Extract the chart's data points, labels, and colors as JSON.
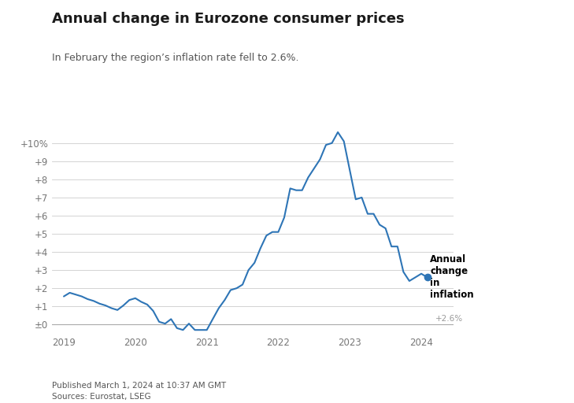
{
  "title": "Annual change in Eurozone consumer prices",
  "subtitle": "In February the region’s inflation rate fell to 2.6%.",
  "footer_line1": "Published March 1, 2024 at 10:37 AM GMT",
  "footer_line2": "Sources: Eurostat, LSEG",
  "line_color": "#2E75B6",
  "background_color": "#ffffff",
  "label_text": "Annual\nchange\nin\ninflation",
  "annotation_text": "+2.6%",
  "ytick_labels": [
    "±0",
    "+1",
    "+2",
    "+3",
    "+4",
    "+5",
    "+6",
    "+7",
    "+8",
    "+9",
    "+10%"
  ],
  "ylim": [
    -0.55,
    11.0
  ],
  "xlim": [
    2018.83,
    2024.45
  ],
  "xticks": [
    2019,
    2020,
    2021,
    2022,
    2023,
    2024
  ],
  "data": {
    "dates_numeric": [
      2019.0,
      2019.083,
      2019.167,
      2019.25,
      2019.333,
      2019.417,
      2019.5,
      2019.583,
      2019.667,
      2019.75,
      2019.833,
      2019.917,
      2020.0,
      2020.083,
      2020.167,
      2020.25,
      2020.333,
      2020.417,
      2020.5,
      2020.583,
      2020.667,
      2020.75,
      2020.833,
      2020.917,
      2021.0,
      2021.083,
      2021.167,
      2021.25,
      2021.333,
      2021.417,
      2021.5,
      2021.583,
      2021.667,
      2021.75,
      2021.833,
      2021.917,
      2022.0,
      2022.083,
      2022.167,
      2022.25,
      2022.333,
      2022.417,
      2022.5,
      2022.583,
      2022.667,
      2022.75,
      2022.833,
      2022.917,
      2023.0,
      2023.083,
      2023.167,
      2023.25,
      2023.333,
      2023.417,
      2023.5,
      2023.583,
      2023.667,
      2023.75,
      2023.833,
      2023.917,
      2024.0,
      2024.083
    ],
    "values": [
      1.55,
      1.75,
      1.65,
      1.55,
      1.4,
      1.3,
      1.15,
      1.05,
      0.9,
      0.8,
      1.05,
      1.35,
      1.45,
      1.25,
      1.1,
      0.75,
      0.15,
      0.05,
      0.3,
      -0.2,
      -0.3,
      0.05,
      -0.3,
      -0.3,
      -0.3,
      0.3,
      0.9,
      1.35,
      1.9,
      2.0,
      2.2,
      3.0,
      3.4,
      4.2,
      4.9,
      5.1,
      5.1,
      5.9,
      7.5,
      7.4,
      7.4,
      8.1,
      8.6,
      9.1,
      9.9,
      10.0,
      10.6,
      10.1,
      8.5,
      6.9,
      7.0,
      6.1,
      6.1,
      5.5,
      5.3,
      4.3,
      4.3,
      2.9,
      2.4,
      2.6,
      2.8,
      2.6
    ]
  }
}
